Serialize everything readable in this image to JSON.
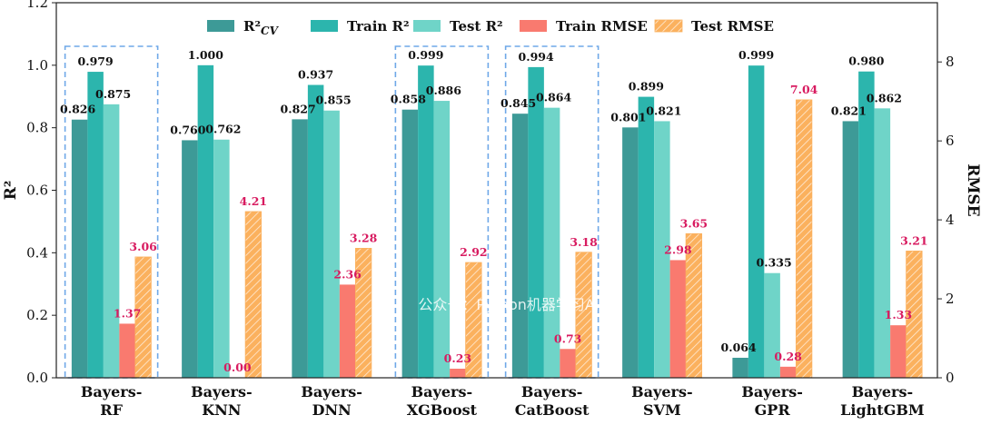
{
  "watermark": "公众号：Python机器学习AI",
  "chart_data": {
    "type": "bar",
    "categories": [
      [
        "Bayers-",
        "RF"
      ],
      [
        "Bayers-",
        "KNN"
      ],
      [
        "Bayers-",
        "DNN"
      ],
      [
        "Bayers-",
        "XGBoost"
      ],
      [
        "Bayers-",
        "CatBoost"
      ],
      [
        "Bayers-",
        "SVM"
      ],
      [
        "Bayers-",
        "GPR"
      ],
      [
        "Bayers-",
        "LightGBM"
      ]
    ],
    "ylabel": "R²",
    "y2label": "RMSE",
    "ylim": [
      0,
      1.2
    ],
    "y2lim": [
      0,
      9.5
    ],
    "yticks": [
      "0.0",
      "0.2",
      "0.4",
      "0.6",
      "0.8",
      "1.0",
      "1.2"
    ],
    "y2ticks": [
      "0",
      "2",
      "4",
      "6",
      "8"
    ],
    "legend_position": "top",
    "series": [
      {
        "name": "R²",
        "name_sub": "CV",
        "axis": "left",
        "color": "#3d9a97",
        "hatch": false,
        "values": [
          0.826,
          0.76,
          0.827,
          0.858,
          0.845,
          0.801,
          0.064,
          0.821
        ],
        "labels": [
          "0.826",
          "0.760",
          "0.827",
          "0.858",
          "0.845",
          "0.801",
          "0.064",
          "0.821"
        ]
      },
      {
        "name": "Train R²",
        "axis": "left",
        "color": "#2cb5ad",
        "hatch": false,
        "values": [
          0.979,
          1.0,
          0.937,
          0.999,
          0.994,
          0.899,
          0.999,
          0.98
        ],
        "labels": [
          "0.979",
          "1.000",
          "0.937",
          "0.999",
          "0.994",
          "0.899",
          "0.999",
          "0.980"
        ]
      },
      {
        "name": "Test R²",
        "axis": "left",
        "color": "#6fd4c8",
        "hatch": false,
        "values": [
          0.875,
          0.762,
          0.855,
          0.886,
          0.864,
          0.821,
          0.335,
          0.862
        ],
        "labels": [
          "0.875",
          "0.762",
          "0.855",
          "0.886",
          "0.864",
          "0.821",
          "0.335",
          "0.862"
        ]
      },
      {
        "name": "Train RMSE",
        "axis": "right",
        "color": "#f97a6f",
        "hatch": false,
        "values": [
          1.37,
          0.0,
          2.36,
          0.23,
          0.73,
          2.98,
          0.28,
          1.33
        ],
        "labels": [
          "1.37",
          "0.00",
          "2.36",
          "0.23",
          "0.73",
          "2.98",
          "0.28",
          "1.33"
        ]
      },
      {
        "name": "Test RMSE",
        "axis": "right",
        "color": "#fbb15e",
        "hatch": true,
        "values": [
          3.06,
          4.21,
          3.28,
          2.92,
          3.18,
          3.65,
          7.04,
          3.21
        ],
        "labels": [
          "3.06",
          "4.21",
          "3.28",
          "2.92",
          "3.18",
          "3.65",
          "7.04",
          "3.21"
        ]
      }
    ],
    "highlighted_categories": [
      0,
      3,
      4
    ],
    "highlight_color": "#6fa8e8",
    "label_color_rmse": "#d81b60"
  }
}
